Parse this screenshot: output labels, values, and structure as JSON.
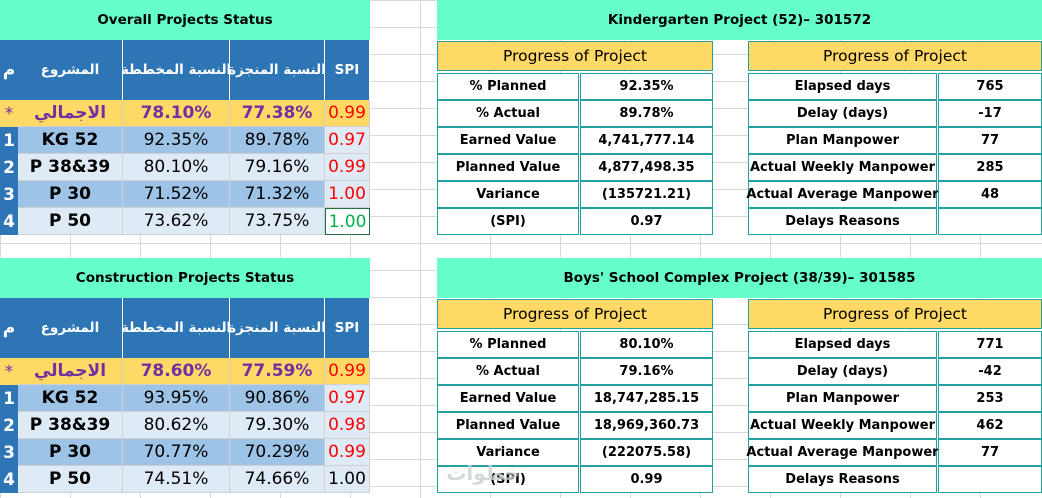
{
  "overall": {
    "title": "Overall Projects Status",
    "headers": {
      "idx": "م",
      "project": "المشروع",
      "planned": "النسبة المخططة",
      "achieved": "النسبة المنجزة",
      "spi": "SPI"
    },
    "rows": [
      {
        "idx": "*",
        "project": "الاجمالي",
        "planned": "78.10%",
        "achieved": "77.38%",
        "spi": "0.99"
      },
      {
        "idx": "1",
        "project": "KG 52",
        "planned": "92.35%",
        "achieved": "89.78%",
        "spi": "0.97"
      },
      {
        "idx": "2",
        "project": "P 38&39",
        "planned": "80.10%",
        "achieved": "79.16%",
        "spi": "0.99"
      },
      {
        "idx": "3",
        "project": "P 30",
        "planned": "71.52%",
        "achieved": "71.32%",
        "spi": "1.00"
      },
      {
        "idx": "4",
        "project": "P 50",
        "planned": "73.62%",
        "achieved": "73.75%",
        "spi": "1.00"
      }
    ]
  },
  "construction": {
    "title": "Construction Projects Status",
    "headers": {
      "idx": "م",
      "project": "المشروع",
      "planned": "النسبة المخططة",
      "achieved": "النسبة المنجزة",
      "spi": "SPI"
    },
    "rows": [
      {
        "idx": "*",
        "project": "الاجمالي",
        "planned": "78.60%",
        "achieved": "77.59%",
        "spi": "0.99"
      },
      {
        "idx": "1",
        "project": "KG 52",
        "planned": "93.95%",
        "achieved": "90.86%",
        "spi": "0.97"
      },
      {
        "idx": "2",
        "project": "P 38&39",
        "planned": "80.62%",
        "achieved": "79.30%",
        "spi": "0.98"
      },
      {
        "idx": "3",
        "project": "P 30",
        "planned": "70.77%",
        "achieved": "70.29%",
        "spi": "0.99"
      },
      {
        "idx": "4",
        "project": "P 50",
        "planned": "74.51%",
        "achieved": "74.66%",
        "spi": "1.00"
      }
    ]
  },
  "kg": {
    "title": "Kindergarten Project (52)– 301572",
    "progress_header_left": "Progress of Project",
    "progress_header_right": "Progress of Project",
    "left": [
      {
        "label": "% Planned",
        "value": "92.35%"
      },
      {
        "label": "% Actual",
        "value": "89.78%"
      },
      {
        "label": "Earned Value",
        "value": "4,741,777.14"
      },
      {
        "label": "Planned Value",
        "value": "4,877,498.35"
      },
      {
        "label": "Variance",
        "value": "(135721.21)"
      },
      {
        "label": "(SPI)",
        "value": "0.97"
      }
    ],
    "right": [
      {
        "label": "Elapsed days",
        "value": "765"
      },
      {
        "label": "Delay (days)",
        "value": "-17"
      },
      {
        "label": "Plan Manpower",
        "value": "77"
      },
      {
        "label": "Actual Weekly Manpower",
        "value": "285"
      },
      {
        "label": "Actual Average Manpower",
        "value": "48"
      },
      {
        "label": "Delays Reasons",
        "value": ""
      }
    ]
  },
  "boys": {
    "title": "Boys' School Complex Project (38/39)– 301585",
    "progress_header_left": "Progress of Project",
    "progress_header_right": "Progress of Project",
    "left": [
      {
        "label": "% Planned",
        "value": "80.10%"
      },
      {
        "label": "% Actual",
        "value": "79.16%"
      },
      {
        "label": "Earned Value",
        "value": "18,747,285.15"
      },
      {
        "label": "Planned Value",
        "value": "18,969,360.73"
      },
      {
        "label": "Variance",
        "value": "(222075.58)"
      },
      {
        "label": "(SPI)",
        "value": "0.99"
      }
    ],
    "right": [
      {
        "label": "Elapsed days",
        "value": "771"
      },
      {
        "label": "Delay (days)",
        "value": "-42"
      },
      {
        "label": "Plan Manpower",
        "value": "253"
      },
      {
        "label": "Actual Weekly Manpower",
        "value": "462"
      },
      {
        "label": "Actual Average Manpower",
        "value": "77"
      },
      {
        "label": "Delays Reasons",
        "value": ""
      }
    ]
  },
  "watermark": "خطوات"
}
